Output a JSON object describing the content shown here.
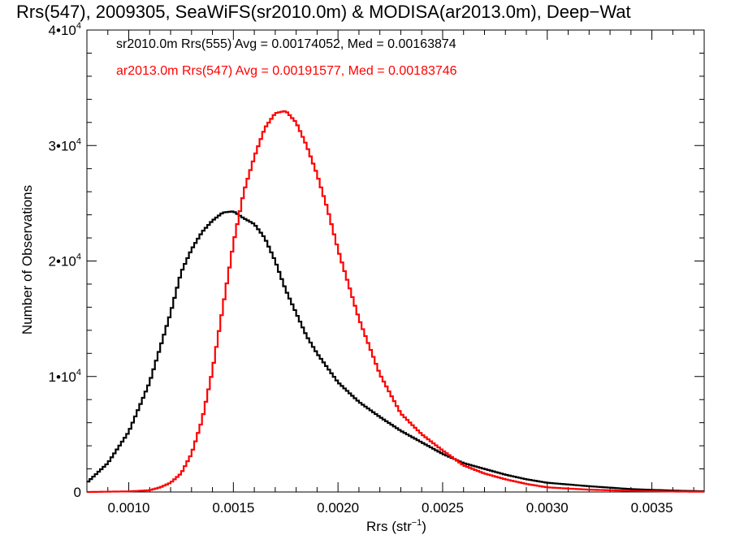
{
  "chart_data": {
    "type": "line",
    "title": "Rrs(547), 2009305, SeaWiFS(sr2010.0m) & MODISA(ar2013.0m), Deep−Wat",
    "xlabel": "Rrs (str",
    "xlabel_sup": "−1",
    "xlabel_suffix": ")",
    "ylabel": "Number of Observations",
    "xlim": [
      0.0008,
      0.00375
    ],
    "ylim": [
      0,
      40000
    ],
    "x_ticks": [
      {
        "value": 0.001,
        "label": "0.0010"
      },
      {
        "value": 0.0015,
        "label": "0.0015"
      },
      {
        "value": 0.002,
        "label": "0.0020"
      },
      {
        "value": 0.0025,
        "label": "0.0025"
      },
      {
        "value": 0.003,
        "label": "0.0030"
      },
      {
        "value": 0.0035,
        "label": "0.0035"
      }
    ],
    "y_ticks": [
      {
        "value": 0,
        "mant": "0",
        "exp": ""
      },
      {
        "value": 10000,
        "mant": "1•10",
        "exp": "4"
      },
      {
        "value": 20000,
        "mant": "2•10",
        "exp": "4"
      },
      {
        "value": 30000,
        "mant": "3•10",
        "exp": "4"
      },
      {
        "value": 40000,
        "mant": "4•10",
        "exp": "4"
      }
    ],
    "grid": false,
    "legend_position": "top-left",
    "series": [
      {
        "name": "sr2010.0m Rrs(555) Avg = 0.00174052, Med = 0.00163874",
        "color": "#000000",
        "points": [
          [
            0.0008,
            800
          ],
          [
            0.0009,
            2500
          ],
          [
            0.001,
            5200
          ],
          [
            0.0011,
            9500
          ],
          [
            0.0012,
            15500
          ],
          [
            0.00125,
            19000
          ],
          [
            0.0013,
            21000
          ],
          [
            0.00135,
            22500
          ],
          [
            0.0014,
            23500
          ],
          [
            0.00145,
            24200
          ],
          [
            0.0015,
            24300
          ],
          [
            0.00155,
            23700
          ],
          [
            0.0016,
            23200
          ],
          [
            0.00165,
            22000
          ],
          [
            0.0017,
            20000
          ],
          [
            0.00175,
            17500
          ],
          [
            0.0018,
            15500
          ],
          [
            0.00185,
            13500
          ],
          [
            0.0019,
            12000
          ],
          [
            0.002,
            9500
          ],
          [
            0.0021,
            7800
          ],
          [
            0.0022,
            6500
          ],
          [
            0.0023,
            5300
          ],
          [
            0.0024,
            4300
          ],
          [
            0.0025,
            3300
          ],
          [
            0.0026,
            2500
          ],
          [
            0.0027,
            2000
          ],
          [
            0.0028,
            1500
          ],
          [
            0.0029,
            1100
          ],
          [
            0.003,
            800
          ],
          [
            0.0032,
            500
          ],
          [
            0.0034,
            250
          ],
          [
            0.0036,
            120
          ],
          [
            0.00375,
            60
          ]
        ]
      },
      {
        "name": "ar2013.0m Rrs(547) Avg = 0.00191577, Med = 0.00183746",
        "color": "#ff0000",
        "points": [
          [
            0.0008,
            0
          ],
          [
            0.001,
            50
          ],
          [
            0.0011,
            150
          ],
          [
            0.00115,
            400
          ],
          [
            0.0012,
            800
          ],
          [
            0.00125,
            1600
          ],
          [
            0.0013,
            3300
          ],
          [
            0.00135,
            6200
          ],
          [
            0.0014,
            10500
          ],
          [
            0.00145,
            16000
          ],
          [
            0.0015,
            21500
          ],
          [
            0.00155,
            26000
          ],
          [
            0.0016,
            29000
          ],
          [
            0.00165,
            31500
          ],
          [
            0.0017,
            32800
          ],
          [
            0.00175,
            33000
          ],
          [
            0.0018,
            32000
          ],
          [
            0.00185,
            30000
          ],
          [
            0.0019,
            27500
          ],
          [
            0.00195,
            24500
          ],
          [
            0.002,
            21000
          ],
          [
            0.00205,
            18000
          ],
          [
            0.0021,
            15000
          ],
          [
            0.0022,
            10200
          ],
          [
            0.0023,
            6800
          ],
          [
            0.0024,
            5000
          ],
          [
            0.0025,
            3600
          ],
          [
            0.0026,
            2300
          ],
          [
            0.0027,
            1600
          ],
          [
            0.0028,
            1100
          ],
          [
            0.0029,
            700
          ],
          [
            0.003,
            400
          ],
          [
            0.0032,
            200
          ],
          [
            0.0034,
            100
          ],
          [
            0.0036,
            40
          ],
          [
            0.00375,
            20
          ]
        ]
      }
    ]
  }
}
